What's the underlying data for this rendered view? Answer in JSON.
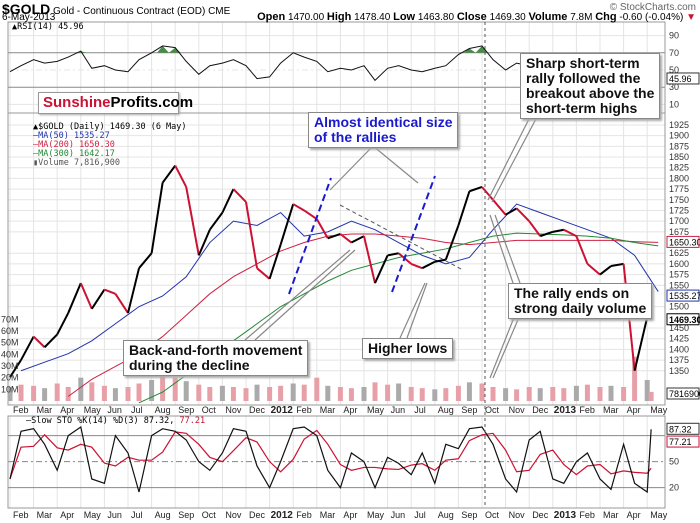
{
  "header": {
    "symbol": "$GOLD",
    "name": "Gold - Continuous Contract (EOD)",
    "exchange": "CME",
    "date": "6-May-2013",
    "copyright": "© StockCharts.com",
    "open_label": "Open",
    "open": "1470.00",
    "high_label": "High",
    "high": "1478.40",
    "low_label": "Low",
    "low": "1463.80",
    "close_label": "Close",
    "close": "1469.30",
    "volume_label": "Volume",
    "volume": "7.8M",
    "chg_label": "Chg",
    "chg": "-0.60 (-0.04%)",
    "chg_arrow": "▼"
  },
  "logo": {
    "part1": "Sunshine",
    "part2": "Profits.com"
  },
  "legend": {
    "rsi": "RSI(14) 45.96",
    "price": "$GOLD (Daily) 1469.30 (6 May)",
    "ma50": "MA(50) 1535.27",
    "ma200": "MA(200) 1650.30",
    "ma300": "MA(300) 1642.17",
    "volume": "Volume 7,816,900",
    "sto_prefix": "Slow STO %K(14) %D(3) 87.32,",
    "sto_d": "77.21"
  },
  "tags": {
    "rsi": "45.96",
    "ma200": "1650.30",
    "ma50": "1535.27",
    "close": "1469.30",
    "volume": "7816900",
    "sto_k": "87.32",
    "sto_d": "77.21"
  },
  "annotations": {
    "rallies": [
      "Almost identical size",
      "of the rallies"
    ],
    "sharp": [
      "Sharp short-term",
      "rally followed the",
      "breakout above the",
      "short-term highs"
    ],
    "rally_ends": [
      "The rally ends on",
      "strong daily volume"
    ],
    "back_forth": [
      "Back-and-forth movement",
      "during the decline"
    ],
    "higher_lows": [
      "Higher lows"
    ]
  },
  "colors": {
    "up": "#000000",
    "down": "#cc1133",
    "ma50": "#2233aa",
    "ma200": "#cc2244",
    "ma300": "#228833",
    "volume": "#e8a0a8",
    "rsi_fill": "#4a8a4a",
    "logo_red": "#cc1133",
    "annotation_blue": "#1a1acc"
  },
  "chart_data": {
    "type": "line",
    "title": "$GOLD Gold - Continuous Contract (EOD) CME",
    "month_labels": [
      "Feb",
      "Mar",
      "Apr",
      "May",
      "Jun",
      "Jul",
      "Aug",
      "Sep",
      "Oct",
      "Nov",
      "Dec",
      "2012",
      "Feb",
      "Mar",
      "Apr",
      "May",
      "Jun",
      "Jul",
      "Aug",
      "Sep",
      "Oct",
      "Nov",
      "Dec",
      "2013",
      "Feb",
      "Mar",
      "Apr",
      "May"
    ],
    "price_ticks": [
      1925,
      1900,
      1875,
      1850,
      1825,
      1800,
      1775,
      1750,
      1725,
      1700,
      1675,
      1625,
      1600,
      1575,
      1550,
      1500,
      1450,
      1425,
      1400,
      1375,
      1350
    ],
    "price_range": [
      1270,
      1955
    ],
    "volume_ticks": [
      "70M",
      "60M",
      "50M",
      "40M",
      "30M",
      "20M",
      "10M"
    ],
    "volume_tick_values": [
      70,
      60,
      50,
      40,
      30,
      20,
      10
    ],
    "rsi_ticks": [
      90,
      70,
      50,
      30,
      10
    ],
    "sto_ticks": [
      50,
      20
    ],
    "dates": [
      "2011-02-01",
      "2011-02-15",
      "2011-03-01",
      "2011-03-15",
      "2011-04-01",
      "2011-04-15",
      "2011-05-01",
      "2011-05-15",
      "2011-06-01",
      "2011-06-15",
      "2011-07-01",
      "2011-07-15",
      "2011-08-01",
      "2011-08-15",
      "2011-09-01",
      "2011-09-15",
      "2011-10-01",
      "2011-10-15",
      "2011-11-01",
      "2011-11-15",
      "2011-12-01",
      "2011-12-15",
      "2012-01-01",
      "2012-01-15",
      "2012-02-01",
      "2012-02-15",
      "2012-03-01",
      "2012-03-15",
      "2012-04-01",
      "2012-04-15",
      "2012-05-01",
      "2012-05-15",
      "2012-06-01",
      "2012-06-15",
      "2012-07-01",
      "2012-07-15",
      "2012-08-01",
      "2012-08-15",
      "2012-09-01",
      "2012-09-15",
      "2012-10-01",
      "2012-10-15",
      "2012-11-01",
      "2012-11-15",
      "2012-12-01",
      "2012-12-15",
      "2013-01-01",
      "2013-01-15",
      "2013-02-01",
      "2013-02-15",
      "2013-03-01",
      "2013-03-15",
      "2013-04-01",
      "2013-04-15",
      "2013-05-01",
      "2013-05-06"
    ],
    "close": [
      1335,
      1375,
      1430,
      1405,
      1435,
      1485,
      1555,
      1495,
      1540,
      1530,
      1485,
      1590,
      1625,
      1790,
      1830,
      1780,
      1620,
      1680,
      1720,
      1775,
      1745,
      1590,
      1565,
      1645,
      1740,
      1725,
      1705,
      1660,
      1670,
      1650,
      1665,
      1555,
      1620,
      1625,
      1600,
      1590,
      1605,
      1610,
      1690,
      1770,
      1780,
      1750,
      1715,
      1730,
      1700,
      1665,
      1675,
      1680,
      1665,
      1600,
      1575,
      1595,
      1600,
      1350,
      1475,
      1469.3
    ],
    "volume_millions": [
      12,
      14,
      13,
      11,
      15,
      12,
      20,
      16,
      13,
      11,
      12,
      15,
      18,
      22,
      20,
      17,
      14,
      12,
      13,
      12,
      11,
      14,
      12,
      13,
      15,
      14,
      20,
      13,
      12,
      11,
      12,
      16,
      14,
      15,
      12,
      11,
      10,
      11,
      13,
      16,
      15,
      12,
      11,
      10,
      12,
      11,
      12,
      11,
      13,
      14,
      12,
      13,
      12,
      38,
      18,
      7.8
    ],
    "rsi": [
      48,
      55,
      62,
      58,
      60,
      65,
      72,
      52,
      55,
      50,
      48,
      62,
      70,
      78,
      76,
      60,
      45,
      55,
      58,
      62,
      55,
      40,
      42,
      58,
      70,
      65,
      60,
      48,
      52,
      50,
      55,
      38,
      52,
      55,
      50,
      48,
      52,
      55,
      68,
      75,
      78,
      62,
      50,
      58,
      55,
      45,
      52,
      50,
      48,
      38,
      35,
      45,
      48,
      20,
      40,
      45.96
    ],
    "sto_k": [
      30,
      85,
      88,
      70,
      40,
      80,
      90,
      30,
      25,
      80,
      60,
      15,
      80,
      88,
      85,
      75,
      50,
      40,
      60,
      88,
      85,
      45,
      20,
      50,
      88,
      90,
      80,
      40,
      20,
      60,
      50,
      20,
      55,
      48,
      35,
      60,
      25,
      70,
      65,
      88,
      90,
      70,
      30,
      15,
      75,
      85,
      30,
      25,
      50,
      60,
      30,
      18,
      70,
      25,
      15,
      87.32
    ],
    "ma_months": [
      "2011-02",
      "2011-03",
      "2011-04",
      "2011-05",
      "2011-06",
      "2011-07",
      "2011-08",
      "2011-09",
      "2011-10",
      "2011-11",
      "2011-12",
      "2012-01",
      "2012-02",
      "2012-03",
      "2012-04",
      "2012-05",
      "2012-06",
      "2012-07",
      "2012-08",
      "2012-09",
      "2012-10",
      "2012-11",
      "2012-12",
      "2013-01",
      "2013-02",
      "2013-03",
      "2013-04",
      "2013-05"
    ],
    "ma50": [
      1350,
      1370,
      1390,
      1420,
      1460,
      1500,
      1525,
      1570,
      1650,
      1700,
      1690,
      1720,
      1665,
      1675,
      1700,
      1680,
      1650,
      1620,
      1600,
      1615,
      1680,
      1740,
      1720,
      1700,
      1680,
      1660,
      1620,
      1535.27
    ],
    "ma200": [
      null,
      null,
      1290,
      1330,
      1360,
      1390,
      1430,
      1480,
      1530,
      1570,
      1600,
      1630,
      1650,
      1665,
      1670,
      1670,
      1665,
      1660,
      1650,
      1645,
      1650,
      1655,
      1655,
      1655,
      1655,
      1655,
      1652,
      1650.3
    ],
    "ma300": [
      null,
      null,
      null,
      null,
      null,
      1275,
      1300,
      1340,
      1380,
      1420,
      1460,
      1500,
      1530,
      1560,
      1585,
      1600,
      1615,
      1625,
      1635,
      1650,
      1665,
      1672,
      1670,
      1668,
      1665,
      1660,
      1650,
      1642.17
    ]
  }
}
